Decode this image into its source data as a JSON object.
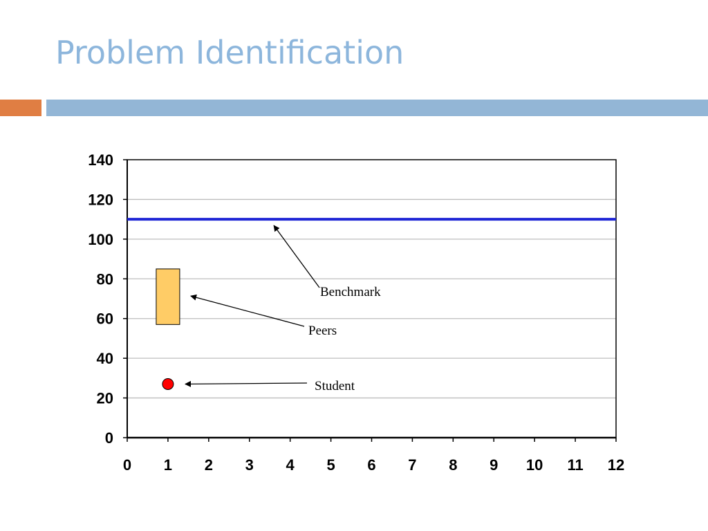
{
  "slide": {
    "title": "Problem Identification",
    "title_color": "#8DB6DC",
    "accent_color": "#E07E43",
    "band_color": "#93B6D6"
  },
  "chart_data": {
    "type": "scatter",
    "title": "",
    "xlabel": "",
    "ylabel": "",
    "xlim": [
      0,
      12
    ],
    "ylim": [
      0,
      140
    ],
    "x_ticks": [
      0,
      1,
      2,
      3,
      4,
      5,
      6,
      7,
      8,
      9,
      10,
      11,
      12
    ],
    "y_ticks": [
      0,
      20,
      40,
      60,
      80,
      100,
      120,
      140
    ],
    "grid": "horizontal",
    "benchmark": {
      "value": 110,
      "color": "#1F26D6"
    },
    "peers": {
      "x": 1,
      "low": 57,
      "high": 85,
      "color": "#FFCC66"
    },
    "student": {
      "x": 1,
      "y": 27,
      "color": "#FF0000"
    },
    "annotations": [
      {
        "text": "Benchmark",
        "target": "benchmark",
        "target_x": 3.6
      },
      {
        "text": "Peers",
        "target": "peers"
      },
      {
        "text": "Student",
        "target": "student"
      }
    ]
  }
}
